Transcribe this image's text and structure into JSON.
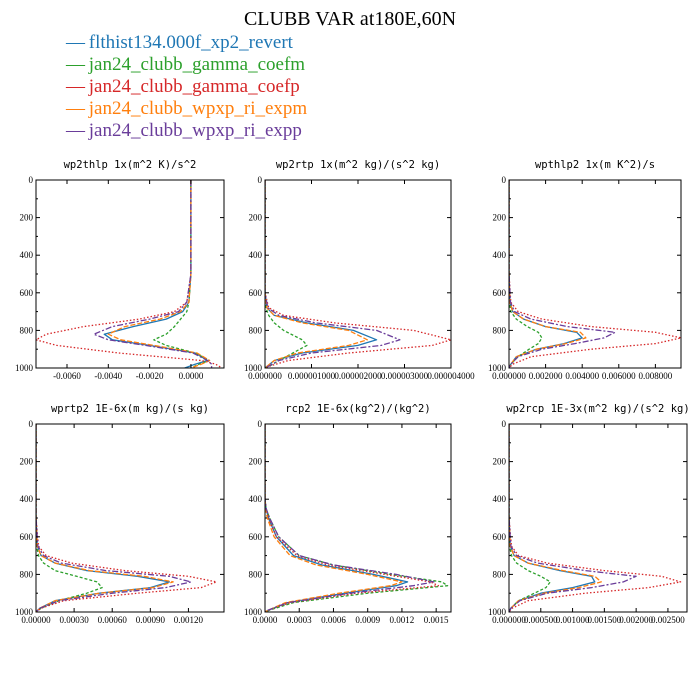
{
  "title": "CLUBB VAR at180E,60N",
  "legend": [
    {
      "label": "flthist134.000f_xp2_revert",
      "color": "#1f77b4"
    },
    {
      "label": "jan24_clubb_gamma_coefm",
      "color": "#2ca02c"
    },
    {
      "label": "jan24_clubb_gamma_coefp",
      "color": "#d62728"
    },
    {
      "label": "jan24_clubb_wpxp_ri_expm",
      "color": "#ff7f0e"
    },
    {
      "label": "jan24_clubb_wpxp_ri_expp",
      "color": "#6a3d9a"
    }
  ],
  "chart_data": [
    {
      "type": "line",
      "title": "wp2thlp  1x(m^2 K)/s^2",
      "xlim": [
        -0.0075,
        0.0016
      ],
      "ylim": [
        1000,
        0
      ],
      "xticks": [
        -0.006,
        -0.004,
        -0.002,
        0.0
      ],
      "xtick_labels": [
        "-0.0060",
        "-0.0040",
        "-0.0020",
        "0.0000"
      ],
      "yticks": [
        0,
        200,
        400,
        600,
        800,
        1000
      ],
      "ytick_labels": [
        "0",
        "200",
        "400",
        "600",
        "800",
        "1000"
      ],
      "y": [
        0,
        500,
        650,
        700,
        740,
        780,
        820,
        850,
        880,
        920,
        960,
        980,
        1000
      ],
      "series": [
        {
          "name": "flthist134.000f_xp2_revert",
          "values": [
            0,
            0,
            -0.0001,
            -0.0004,
            -0.0012,
            -0.0028,
            -0.0042,
            -0.0038,
            -0.002,
            0.0002,
            0.0008,
            0.0002,
            -0.0003
          ]
        },
        {
          "name": "jan24_clubb_gamma_coefm",
          "values": [
            0,
            0,
            -0.0001,
            -0.0002,
            -0.0005,
            -0.0008,
            -0.0012,
            -0.0018,
            -0.0012,
            0.0002,
            0.0009,
            0.0004,
            0
          ]
        },
        {
          "name": "jan24_clubb_gamma_coefp",
          "values": [
            0,
            0,
            -0.0002,
            -0.0008,
            -0.0025,
            -0.0052,
            -0.007,
            -0.0075,
            -0.0065,
            -0.0035,
            0.0005,
            0.0012,
            0.0015
          ]
        },
        {
          "name": "jan24_clubb_wpxp_ri_expm",
          "values": [
            0,
            0,
            -0.0001,
            -0.0005,
            -0.0015,
            -0.0032,
            -0.004,
            -0.0034,
            -0.0018,
            0.0003,
            0.0009,
            0.0005,
            0
          ]
        },
        {
          "name": "jan24_clubb_wpxp_ri_expp",
          "values": [
            0,
            0,
            -0.0002,
            -0.0006,
            -0.002,
            -0.0038,
            -0.0047,
            -0.004,
            -0.0022,
            0.0001,
            0.0008,
            0.001,
            0.001
          ]
        }
      ]
    },
    {
      "type": "line",
      "title": "wp2rtp  1x(m^2 kg)/(s^2 kg)",
      "xlim": [
        0.0,
        4e-06
      ],
      "ylim": [
        1000,
        0
      ],
      "xticks": [
        0.0,
        1e-06,
        2e-06,
        3e-06,
        4e-06
      ],
      "xtick_labels": [
        "0.000000",
        "0.000001000",
        "0.000002000",
        "0.000003000",
        "0.000004000"
      ],
      "yticks": [
        0,
        200,
        400,
        600,
        800,
        1000
      ],
      "ytick_labels": [
        "0",
        "200",
        "400",
        "600",
        "800",
        "1000"
      ],
      "y": [
        0,
        400,
        600,
        680,
        720,
        760,
        800,
        850,
        880,
        920,
        960,
        990,
        1000
      ],
      "series": [
        {
          "name": "flthist134.000f_xp2_revert",
          "values": [
            0,
            0,
            0,
            4e-08,
            2e-07,
            9e-07,
            1.9e-06,
            2.4e-06,
            2e-06,
            8e-07,
            2e-07,
            5e-08,
            0
          ]
        },
        {
          "name": "jan24_clubb_gamma_coefm",
          "values": [
            0,
            0,
            0,
            2e-08,
            8e-08,
            2e-07,
            4e-07,
            8e-07,
            9e-07,
            6e-07,
            3e-07,
            1e-07,
            0
          ]
        },
        {
          "name": "jan24_clubb_gamma_coefp",
          "values": [
            0,
            0,
            0,
            8e-08,
            4e-07,
            1.5e-06,
            3.2e-06,
            4e-06,
            3.6e-06,
            1.8e-06,
            5e-07,
            1e-07,
            0
          ]
        },
        {
          "name": "jan24_clubb_wpxp_ri_expm",
          "values": [
            0,
            0,
            0,
            4e-08,
            2e-07,
            8e-07,
            1.8e-06,
            2.2e-06,
            1.8e-06,
            7e-07,
            2e-07,
            5e-08,
            0
          ]
        },
        {
          "name": "jan24_clubb_wpxp_ri_expp",
          "values": [
            0,
            0,
            0,
            6e-08,
            3e-07,
            1.1e-06,
            2.4e-06,
            2.9e-06,
            2.5e-06,
            1e-06,
            3e-07,
            8e-08,
            0
          ]
        }
      ]
    },
    {
      "type": "line",
      "title": "wpthlp2  1x(m K^2)/s",
      "xlim": [
        0.0,
        0.0094
      ],
      "ylim": [
        1000,
        0
      ],
      "xticks": [
        0.0,
        0.002,
        0.004,
        0.006,
        0.008
      ],
      "xtick_labels": [
        "0.000000",
        "0.002000",
        "0.004000",
        "0.006000",
        "0.008000"
      ],
      "yticks": [
        0,
        200,
        400,
        600,
        800,
        1000
      ],
      "ytick_labels": [
        "0",
        "200",
        "400",
        "600",
        "800",
        "1000"
      ],
      "y": [
        0,
        500,
        650,
        700,
        740,
        780,
        810,
        840,
        870,
        900,
        940,
        980,
        1000
      ],
      "series": [
        {
          "name": "flthist134.000f_xp2_revert",
          "values": [
            0,
            0,
            5e-05,
            0.0002,
            0.0008,
            0.002,
            0.0037,
            0.004,
            0.003,
            0.0015,
            0.0004,
            0.0001,
            0
          ]
        },
        {
          "name": "jan24_clubb_gamma_coefm",
          "values": [
            0,
            0,
            3e-05,
            0.0001,
            0.0004,
            0.001,
            0.0016,
            0.0018,
            0.0016,
            0.0011,
            0.0005,
            0.0001,
            0
          ]
        },
        {
          "name": "jan24_clubb_gamma_coefp",
          "values": [
            0,
            0,
            0.0001,
            0.0005,
            0.0018,
            0.0045,
            0.008,
            0.0094,
            0.008,
            0.0045,
            0.0012,
            0.0002,
            0
          ]
        },
        {
          "name": "jan24_clubb_wpxp_ri_expm",
          "values": [
            0,
            0,
            5e-05,
            0.0002,
            0.0008,
            0.002,
            0.0039,
            0.0042,
            0.0031,
            0.0015,
            0.0004,
            0.0001,
            0
          ]
        },
        {
          "name": "jan24_clubb_wpxp_ri_expp",
          "values": [
            0,
            0,
            8e-05,
            0.0003,
            0.0012,
            0.0032,
            0.0058,
            0.0052,
            0.0036,
            0.0018,
            0.0005,
            0.0001,
            0
          ]
        }
      ]
    },
    {
      "type": "line",
      "title": "wprtp2  1E-6x(m kg)/(s kg)",
      "xlim": [
        0.0,
        0.00148
      ],
      "ylim": [
        1000,
        0
      ],
      "xticks": [
        0.0,
        0.0003,
        0.0006,
        0.0009,
        0.0012
      ],
      "xtick_labels": [
        "0.00000",
        "0.00030",
        "0.00060",
        "0.00090",
        "0.00120"
      ],
      "yticks": [
        0,
        200,
        400,
        600,
        800,
        1000
      ],
      "ytick_labels": [
        "0",
        "200",
        "400",
        "600",
        "800",
        "1000"
      ],
      "y": [
        0,
        500,
        650,
        700,
        740,
        780,
        810,
        840,
        870,
        900,
        940,
        980,
        1000
      ],
      "series": [
        {
          "name": "flthist134.000f_xp2_revert",
          "values": [
            0,
            0,
            1e-05,
            4e-05,
            0.00015,
            0.0004,
            0.0008,
            0.00105,
            0.0009,
            0.0005,
            0.00015,
            3e-05,
            0
          ]
        },
        {
          "name": "jan24_clubb_gamma_coefm",
          "values": [
            0,
            0,
            5e-06,
            2e-05,
            6e-05,
            0.00015,
            0.00032,
            0.00048,
            0.00052,
            0.0004,
            0.00018,
            4e-05,
            0
          ]
        },
        {
          "name": "jan24_clubb_gamma_coefp",
          "values": [
            0,
            0,
            2e-05,
            8e-05,
            0.00028,
            0.0007,
            0.0012,
            0.00142,
            0.0013,
            0.0008,
            0.00022,
            4e-05,
            0
          ]
        },
        {
          "name": "jan24_clubb_wpxp_ri_expm",
          "values": [
            0,
            0,
            1e-05,
            4e-05,
            0.00015,
            0.00042,
            0.00085,
            0.00108,
            0.00092,
            0.0005,
            0.00015,
            3e-05,
            0
          ]
        },
        {
          "name": "jan24_clubb_wpxp_ri_expp",
          "values": [
            0,
            0,
            1.5e-05,
            6e-05,
            0.0002,
            0.00055,
            0.00105,
            0.00122,
            0.00102,
            0.0006,
            0.00018,
            3e-05,
            0
          ]
        }
      ]
    },
    {
      "type": "line",
      "title": "rcp2  1E-6x(kg^2)/(kg^2)",
      "xlim": [
        0.0,
        0.00163
      ],
      "ylim": [
        1000,
        0
      ],
      "xticks": [
        0.0,
        0.0003,
        0.0006,
        0.0009,
        0.0012,
        0.0015
      ],
      "xtick_labels": [
        "0.0000",
        "0.0003",
        "0.0006",
        "0.0009",
        "0.0012",
        "0.0015"
      ],
      "yticks": [
        0,
        200,
        400,
        600,
        800,
        1000
      ],
      "ytick_labels": [
        "0",
        "200",
        "400",
        "600",
        "800",
        "1000"
      ],
      "y": [
        0,
        400,
        450,
        500,
        600,
        700,
        750,
        800,
        840,
        860,
        900,
        950,
        990,
        1000
      ],
      "series": [
        {
          "name": "flthist134.000f_xp2_revert",
          "values": [
            0,
            0,
            1e-05,
            3e-05,
            0.0001,
            0.00025,
            0.0005,
            0.00095,
            0.00125,
            0.00115,
            0.0007,
            0.0002,
            3e-05,
            0
          ]
        },
        {
          "name": "jan24_clubb_gamma_coefm",
          "values": [
            0,
            0,
            1e-05,
            4e-05,
            0.00012,
            0.0003,
            0.0006,
            0.0011,
            0.00155,
            0.0016,
            0.0009,
            0.00025,
            4e-05,
            0
          ]
        },
        {
          "name": "jan24_clubb_gamma_coefp",
          "values": [
            0,
            0,
            1e-05,
            3e-05,
            0.0001,
            0.00028,
            0.00055,
            0.00105,
            0.00145,
            0.00152,
            0.0008,
            0.00022,
            3e-05,
            0
          ]
        },
        {
          "name": "jan24_clubb_wpxp_ri_expm",
          "values": [
            0,
            0,
            5e-06,
            2e-05,
            8e-05,
            0.00022,
            0.00045,
            0.0009,
            0.0012,
            0.0011,
            0.00065,
            0.00018,
            3e-05,
            0
          ]
        },
        {
          "name": "jan24_clubb_wpxp_ri_expp",
          "values": [
            0,
            0,
            1e-05,
            4e-05,
            0.00012,
            0.0003,
            0.0006,
            0.00115,
            0.00148,
            0.0013,
            0.00075,
            0.0002,
            3e-05,
            0
          ]
        }
      ]
    },
    {
      "type": "line",
      "title": "wp2rcp  1E-3x(m^2 kg)/(s^2 kg)",
      "xlim": [
        0.0,
        0.0028
      ],
      "ylim": [
        1000,
        0
      ],
      "xticks": [
        0.0,
        0.0005,
        0.001,
        0.0015,
        0.002,
        0.0025
      ],
      "xtick_labels": [
        "0.000000",
        "0.000500",
        "0.001000",
        "0.001500",
        "0.002000",
        "0.002500"
      ],
      "yticks": [
        0,
        200,
        400,
        600,
        800,
        1000
      ],
      "ytick_labels": [
        "0",
        "200",
        "400",
        "600",
        "800",
        "1000"
      ],
      "y": [
        0,
        500,
        650,
        700,
        740,
        780,
        810,
        840,
        870,
        900,
        940,
        980,
        1000
      ],
      "series": [
        {
          "name": "flthist134.000f_xp2_revert",
          "values": [
            0,
            0,
            2e-05,
            8e-05,
            0.0003,
            0.0008,
            0.0013,
            0.00135,
            0.001,
            0.0005,
            0.00015,
            3e-05,
            0
          ]
        },
        {
          "name": "jan24_clubb_gamma_coefm",
          "values": [
            0,
            0,
            1e-05,
            4e-05,
            0.00012,
            0.0003,
            0.0005,
            0.00065,
            0.00058,
            0.0004,
            0.00015,
            3e-05,
            0
          ]
        },
        {
          "name": "jan24_clubb_gamma_coefp",
          "values": [
            0,
            0,
            4e-05,
            0.00015,
            0.0006,
            0.0015,
            0.0024,
            0.0027,
            0.0022,
            0.0012,
            0.0003,
            5e-05,
            0
          ]
        },
        {
          "name": "jan24_clubb_wpxp_ri_expm",
          "values": [
            0,
            0,
            2e-05,
            8e-05,
            0.0003,
            0.00085,
            0.00135,
            0.00145,
            0.0011,
            0.00055,
            0.00015,
            3e-05,
            0
          ]
        },
        {
          "name": "jan24_clubb_wpxp_ri_expp",
          "values": [
            0,
            0,
            3e-05,
            0.00012,
            0.00045,
            0.0012,
            0.002,
            0.0018,
            0.0013,
            0.0006,
            0.00017,
            3e-05,
            0
          ]
        }
      ]
    }
  ]
}
